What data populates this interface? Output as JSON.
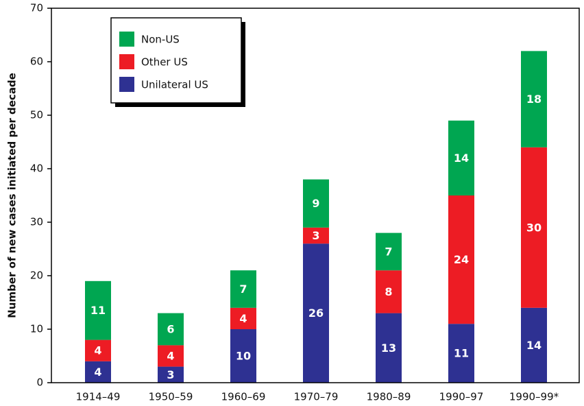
{
  "chart_data": {
    "type": "stacked_bar",
    "y_label": "Number of new cases initiated per decade",
    "categories": [
      "1914–49",
      "1950–59",
      "1960–69",
      "1970–79",
      "1980–89",
      "1990–97",
      "1990–99*"
    ],
    "series": [
      {
        "name": "Unilateral US",
        "color": "#2e3192",
        "values": [
          4,
          3,
          10,
          26,
          13,
          11,
          14
        ]
      },
      {
        "name": "Other US",
        "color": "#ed1c24",
        "values": [
          4,
          4,
          4,
          3,
          8,
          24,
          30
        ]
      },
      {
        "name": "Non-US",
        "color": "#00a651",
        "values": [
          11,
          6,
          7,
          9,
          7,
          14,
          18
        ]
      }
    ],
    "ylim": [
      0,
      70
    ],
    "yticks": [
      0,
      10,
      20,
      30,
      40,
      50,
      60,
      70
    ],
    "legend": "upper-left"
  }
}
